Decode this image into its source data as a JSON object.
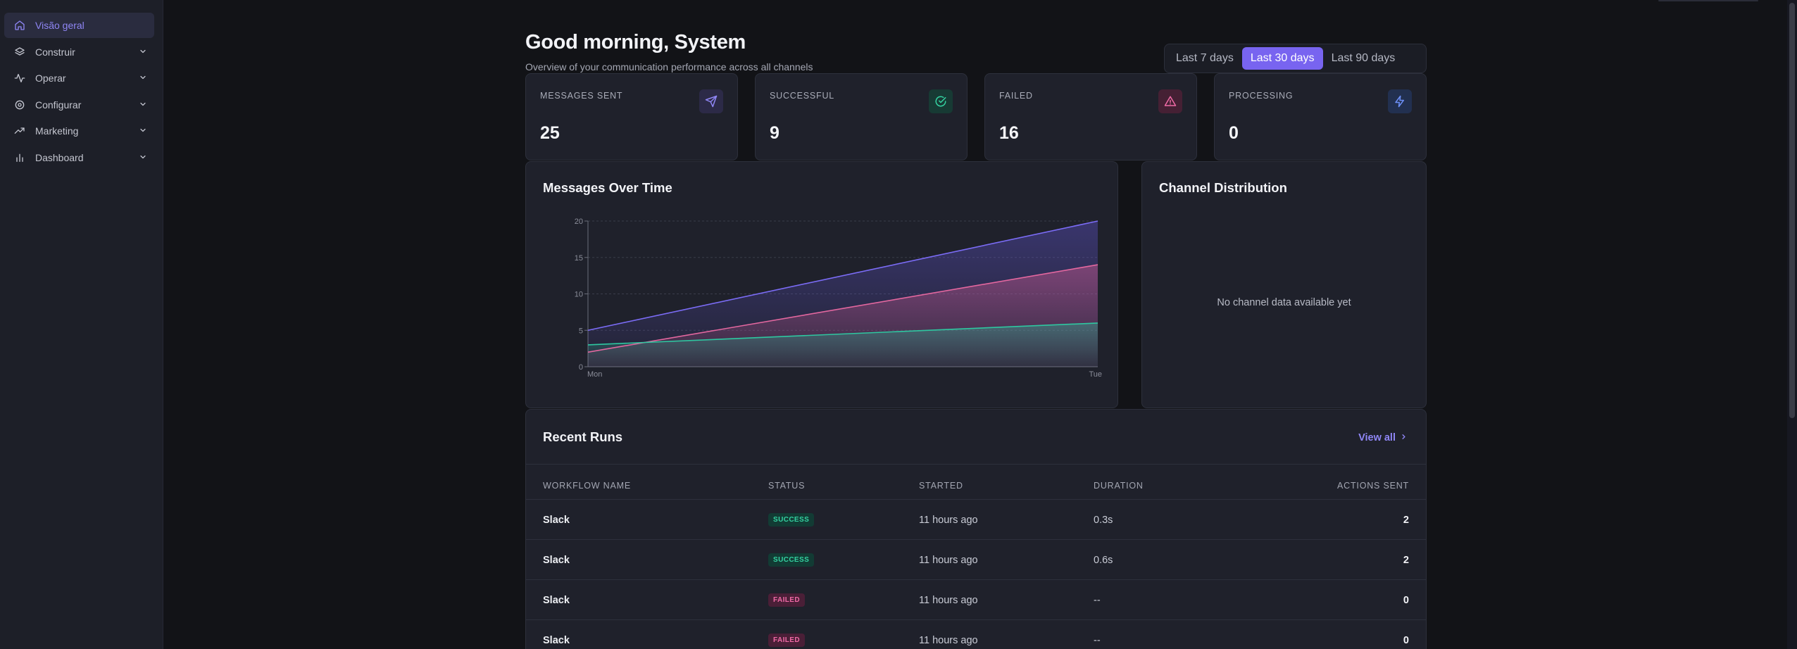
{
  "sidebar": {
    "items": [
      {
        "label": "Visão geral",
        "icon": "home-icon",
        "active": true
      },
      {
        "label": "Construir",
        "icon": "layers-icon"
      },
      {
        "label": "Operar",
        "icon": "activity-icon"
      },
      {
        "label": "Configurar",
        "icon": "gear-icon"
      },
      {
        "label": "Marketing",
        "icon": "trending-up-icon"
      },
      {
        "label": "Dashboard",
        "icon": "bar-chart-icon"
      }
    ]
  },
  "header": {
    "greeting": "Good morning, System",
    "subtitle": "Overview of your communication performance across all channels"
  },
  "range": {
    "options": [
      "Last 7 days",
      "Last 30 days",
      "Last 90 days"
    ],
    "selected": "Last 30 days"
  },
  "stats": [
    {
      "label": "MESSAGES SENT",
      "value": "25",
      "icon": "send-icon",
      "color": "#8f86f5"
    },
    {
      "label": "SUCCESSFUL",
      "value": "9",
      "icon": "check-circle-icon",
      "color": "#34d3a2"
    },
    {
      "label": "FAILED",
      "value": "16",
      "icon": "alert-triangle-icon",
      "color": "#f06aa6"
    },
    {
      "label": "PROCESSING",
      "value": "0",
      "icon": "zap-icon",
      "color": "#6c8ef5"
    }
  ],
  "messages_chart": {
    "title": "Messages Over Time"
  },
  "chart_data": {
    "type": "area",
    "x": [
      "Mon",
      "Tue"
    ],
    "ylim": [
      0,
      20
    ],
    "yticks": [
      0,
      5,
      10,
      15,
      20
    ],
    "grid": true,
    "series": [
      {
        "values": [
          5,
          20
        ],
        "color": "#7b6cf6"
      },
      {
        "values": [
          2,
          14
        ],
        "color": "#e3679f"
      },
      {
        "values": [
          3,
          6
        ],
        "color": "#2ec7a0"
      }
    ]
  },
  "channel_distribution": {
    "title": "Channel Distribution",
    "empty_message": "No channel data available yet"
  },
  "recent_runs": {
    "title": "Recent Runs",
    "view_all": "View all",
    "columns": [
      "WORKFLOW NAME",
      "STATUS",
      "STARTED",
      "DURATION",
      "ACTIONS SENT"
    ],
    "rows": [
      {
        "name": "Slack",
        "status": "SUCCESS",
        "started": "11 hours ago",
        "duration": "0.3s",
        "actions": "2"
      },
      {
        "name": "Slack",
        "status": "SUCCESS",
        "started": "11 hours ago",
        "duration": "0.6s",
        "actions": "2"
      },
      {
        "name": "Slack",
        "status": "FAILED",
        "started": "11 hours ago",
        "duration": "--",
        "actions": "0"
      },
      {
        "name": "Slack",
        "status": "FAILED",
        "started": "11 hours ago",
        "duration": "--",
        "actions": "0"
      }
    ]
  }
}
